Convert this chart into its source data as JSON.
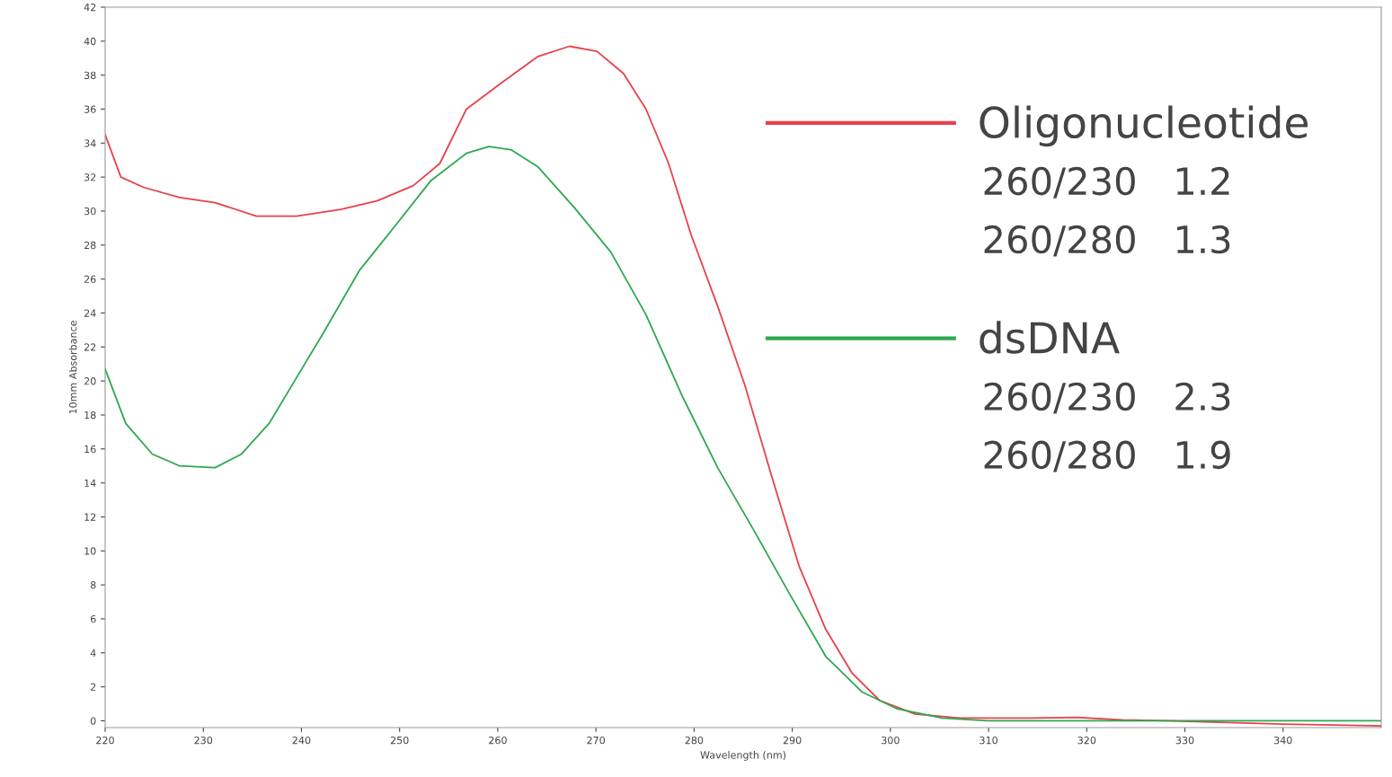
{
  "chart_data": {
    "type": "line",
    "xlabel": "Wavelength (nm)",
    "ylabel": "10mm Absorbance",
    "xlim": [
      220,
      350
    ],
    "xticks": [
      220,
      230,
      240,
      250,
      260,
      270,
      280,
      290,
      300,
      310,
      320,
      330,
      340
    ],
    "ylim": [
      -0.4,
      42
    ],
    "yticks": [
      0,
      2,
      4,
      6,
      8,
      10,
      12,
      14,
      16,
      18,
      20,
      22,
      24,
      26,
      28,
      30,
      32,
      34,
      36,
      38,
      40,
      42
    ],
    "grid": false,
    "legend": "top right",
    "marker": "none",
    "line_style": "solid",
    "series": [
      {
        "name": "Oligonucleotide",
        "color": "#e8414a",
        "x": [
          220,
          221.6,
          223.9,
          227.6,
          231.2,
          235.4,
          239.5,
          244,
          247.7,
          251.4,
          254.1,
          256.8,
          260.5,
          264.1,
          267.3,
          270.1,
          272.8,
          275.1,
          277.4,
          279.7,
          282.4,
          285.2,
          287.9,
          290.7,
          293.4,
          296.1,
          298.9,
          302.5,
          307.1,
          314.4,
          319,
          323.6,
          328,
          340,
          350
        ],
        "values": [
          34.5,
          32.0,
          31.4,
          30.8,
          30.5,
          29.7,
          29.7,
          30.1,
          30.6,
          31.5,
          32.8,
          36.0,
          37.6,
          39.1,
          39.7,
          39.4,
          38.1,
          36.0,
          32.8,
          28.6,
          24.4,
          19.7,
          14.4,
          9.1,
          5.4,
          2.8,
          1.2,
          0.4,
          0.16,
          0.16,
          0.2,
          0.05,
          0,
          -0.2,
          -0.3
        ]
      },
      {
        "name": "dsDNA",
        "color": "#2ea84f",
        "x": [
          220,
          222.1,
          224.8,
          227.6,
          231.2,
          233.9,
          236.7,
          239.5,
          242.2,
          245.9,
          249.5,
          253.2,
          256.8,
          259.1,
          261.4,
          264.1,
          267.8,
          271.5,
          275.1,
          278.8,
          282.4,
          286.1,
          289.7,
          293.4,
          297.1,
          300.7,
          305.3,
          309.9,
          319,
          332.7,
          350
        ],
        "values": [
          20.7,
          17.5,
          15.7,
          15.0,
          14.9,
          15.7,
          17.5,
          20.2,
          22.8,
          26.5,
          29.1,
          31.8,
          33.4,
          33.8,
          33.6,
          32.6,
          30.2,
          27.6,
          23.9,
          19.1,
          14.9,
          11.2,
          7.5,
          3.8,
          1.7,
          0.7,
          0.16,
          0,
          0,
          0,
          0
        ]
      }
    ],
    "annotations": [
      "260/230   1.2",
      "260/280   1.3",
      "260/230   2.3",
      "260/280   1.9"
    ]
  }
}
